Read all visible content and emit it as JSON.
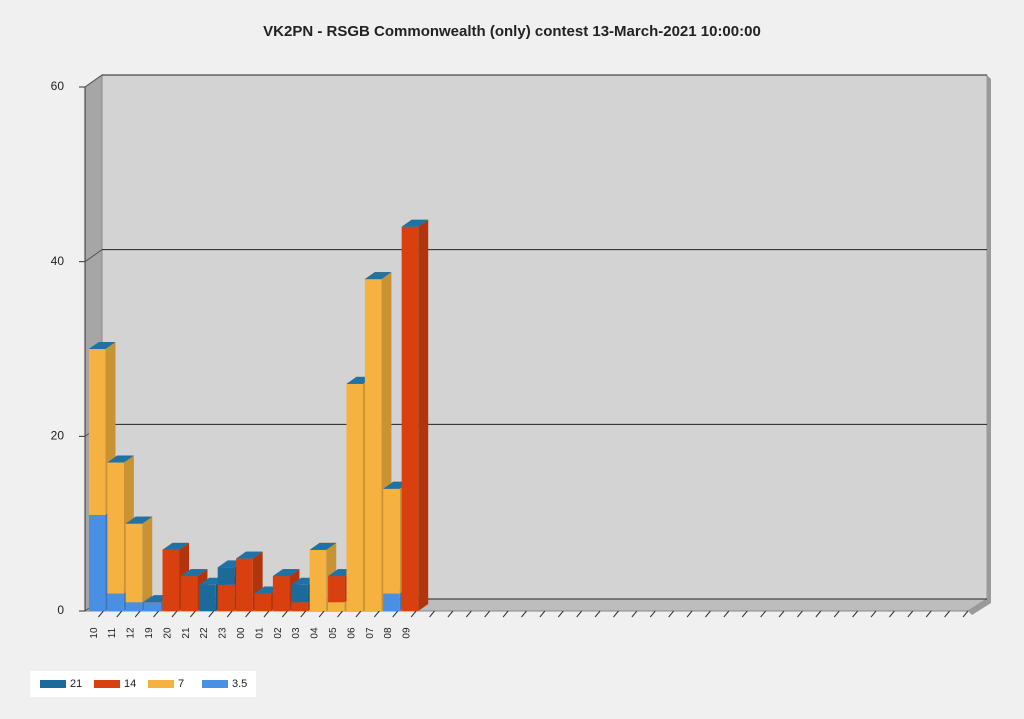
{
  "chart_data": {
    "type": "bar3d",
    "stacked": true,
    "title": "VK2PN - RSGB Commonwealth (only) contest 13-March-2021 10:00:00",
    "categories": [
      "10",
      "11",
      "12",
      "19",
      "20",
      "21",
      "22",
      "23",
      "00",
      "01",
      "02",
      "03",
      "04",
      "05",
      "06",
      "07",
      "08",
      "09",
      null,
      null,
      null,
      null,
      null,
      null,
      null,
      null,
      null,
      null,
      null,
      null,
      null,
      null,
      null,
      null,
      null,
      null,
      null,
      null,
      null,
      null,
      null,
      null,
      null,
      null,
      null,
      null,
      null,
      null
    ],
    "series": [
      {
        "name": "21",
        "color": "#1b6a9a",
        "values": [
          0,
          0,
          0,
          0,
          0,
          0,
          3,
          2,
          0,
          0,
          0,
          2,
          0,
          0,
          0,
          0,
          0,
          0,
          null,
          null,
          null,
          null,
          null,
          null,
          null,
          null,
          null,
          null,
          null,
          null,
          null,
          null,
          null,
          null,
          null,
          null,
          null,
          null,
          null,
          null,
          null,
          null,
          null,
          null,
          null,
          null,
          null,
          null
        ]
      },
      {
        "name": "14",
        "color": "#d9400f",
        "values": [
          0,
          0,
          0,
          0,
          7,
          4,
          0,
          3,
          6,
          2,
          4,
          1,
          0,
          3,
          0,
          0,
          0,
          44,
          null,
          null,
          null,
          null,
          null,
          null,
          null,
          null,
          null,
          null,
          null,
          null,
          null,
          null,
          null,
          null,
          null,
          null,
          null,
          null,
          null,
          null,
          null,
          null,
          null,
          null,
          null,
          null,
          null,
          null
        ]
      },
      {
        "name": "7",
        "color": "#f5b240",
        "values": [
          19,
          15,
          9,
          0,
          0,
          0,
          0,
          0,
          0,
          0,
          0,
          0,
          7,
          1,
          26,
          38,
          12,
          0,
          null,
          null,
          null,
          null,
          null,
          null,
          null,
          null,
          null,
          null,
          null,
          null,
          null,
          null,
          null,
          null,
          null,
          null,
          null,
          null,
          null,
          null,
          null,
          null,
          null,
          null,
          null,
          null,
          null,
          null
        ]
      },
      {
        "name": "3.5",
        "color": "#4a90e2",
        "values": [
          11,
          2,
          1,
          1,
          0,
          0,
          0,
          0,
          0,
          0,
          0,
          0,
          0,
          0,
          0,
          0,
          2,
          0,
          null,
          null,
          null,
          null,
          null,
          null,
          null,
          null,
          null,
          null,
          null,
          null,
          null,
          null,
          null,
          null,
          null,
          null,
          null,
          null,
          null,
          null,
          null,
          null,
          null,
          null,
          null,
          null,
          null,
          null
        ]
      }
    ],
    "stack_order": [
      "3.5",
      "7",
      "14",
      "21"
    ],
    "ylim": [
      0,
      60
    ],
    "yticks": [
      0,
      20,
      40,
      60
    ],
    "grid": true
  }
}
